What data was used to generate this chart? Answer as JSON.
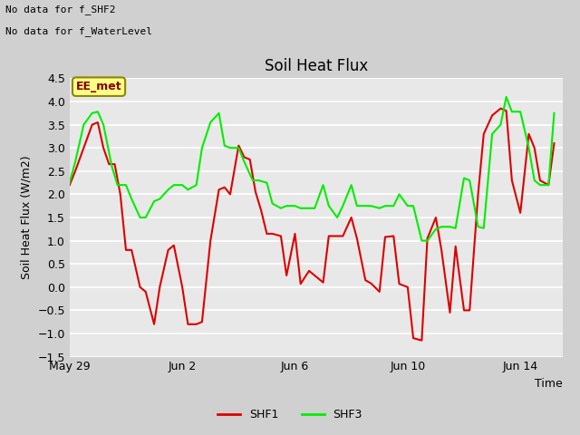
{
  "title": "Soil Heat Flux",
  "ylabel": "Soil Heat Flux (W/m2)",
  "xlabel": "Time",
  "top_note1": "No data for f_SHF2",
  "top_note2": "No data for f_WaterLevel",
  "legend_label": "EE_met",
  "ylim": [
    -1.5,
    4.5
  ],
  "yticks": [
    -1.5,
    -1.0,
    -0.5,
    0.0,
    0.5,
    1.0,
    1.5,
    2.0,
    2.5,
    3.0,
    3.5,
    4.0,
    4.5
  ],
  "bg_color": "#d0d0d0",
  "plot_bg_color": "#e8e8e8",
  "shf1_color": "#dd0000",
  "shf3_color": "#00ee00",
  "line_width": 1.5,
  "xlim": [
    0,
    17.5
  ],
  "xtick_labels": [
    "May 29",
    "Jun 2",
    "Jun 6",
    "Jun 10",
    "Jun 14"
  ],
  "xtick_positions": [
    0,
    4,
    8,
    12,
    16
  ],
  "shf1_x": [
    0.0,
    0.2,
    0.5,
    0.8,
    1.0,
    1.2,
    1.4,
    1.6,
    1.8,
    2.0,
    2.2,
    2.5,
    2.7,
    3.0,
    3.2,
    3.5,
    3.7,
    4.0,
    4.2,
    4.5,
    4.7,
    5.0,
    5.3,
    5.5,
    5.7,
    6.0,
    6.2,
    6.4,
    6.6,
    6.8,
    7.0,
    7.2,
    7.5,
    7.7,
    8.0,
    8.2,
    8.5,
    8.7,
    9.0,
    9.2,
    9.5,
    9.7,
    10.0,
    10.2,
    10.5,
    10.7,
    11.0,
    11.2,
    11.5,
    11.7,
    12.0,
    12.2,
    12.5,
    12.7,
    13.0,
    13.2,
    13.5,
    13.7,
    14.0,
    14.2,
    14.5,
    14.7,
    15.0,
    15.3,
    15.5,
    15.7,
    16.0,
    16.3,
    16.5,
    16.7,
    17.0,
    17.2
  ],
  "shf1_y": [
    2.2,
    2.5,
    3.0,
    3.5,
    3.55,
    3.0,
    2.65,
    2.65,
    2.0,
    0.8,
    0.8,
    0.0,
    -0.1,
    -0.8,
    0.0,
    0.8,
    0.9,
    0.0,
    -0.8,
    -0.8,
    -0.75,
    1.0,
    2.1,
    2.15,
    2.0,
    3.05,
    2.8,
    2.75,
    2.05,
    1.65,
    1.15,
    1.15,
    1.1,
    0.25,
    1.15,
    0.07,
    0.35,
    0.25,
    0.1,
    1.1,
    1.1,
    1.1,
    1.5,
    1.05,
    0.15,
    0.08,
    -0.1,
    1.08,
    1.1,
    0.07,
    0.0,
    -1.1,
    -1.15,
    1.05,
    1.5,
    0.8,
    -0.55,
    0.88,
    -0.5,
    -0.5,
    2.0,
    3.3,
    3.7,
    3.85,
    3.8,
    2.3,
    1.6,
    3.3,
    3.0,
    2.3,
    2.2,
    3.1
  ],
  "shf3_x": [
    0.0,
    0.2,
    0.5,
    0.8,
    1.0,
    1.2,
    1.5,
    1.7,
    2.0,
    2.2,
    2.5,
    2.7,
    3.0,
    3.2,
    3.5,
    3.7,
    4.0,
    4.2,
    4.5,
    4.7,
    5.0,
    5.3,
    5.5,
    5.7,
    6.0,
    6.2,
    6.5,
    6.7,
    7.0,
    7.2,
    7.5,
    7.7,
    8.0,
    8.2,
    8.5,
    8.7,
    9.0,
    9.2,
    9.5,
    9.7,
    10.0,
    10.2,
    10.5,
    10.7,
    11.0,
    11.2,
    11.5,
    11.7,
    12.0,
    12.2,
    12.5,
    12.7,
    13.0,
    13.2,
    13.5,
    13.7,
    14.0,
    14.2,
    14.5,
    14.7,
    15.0,
    15.3,
    15.5,
    15.7,
    16.0,
    16.3,
    16.5,
    16.7,
    17.0,
    17.2
  ],
  "shf3_y": [
    2.25,
    2.7,
    3.5,
    3.75,
    3.78,
    3.5,
    2.6,
    2.2,
    2.2,
    1.9,
    1.5,
    1.5,
    1.85,
    1.9,
    2.1,
    2.2,
    2.2,
    2.1,
    2.2,
    3.0,
    3.55,
    3.75,
    3.05,
    3.0,
    3.0,
    2.7,
    2.3,
    2.3,
    2.25,
    1.8,
    1.7,
    1.75,
    1.75,
    1.7,
    1.7,
    1.7,
    2.2,
    1.75,
    1.5,
    1.75,
    2.2,
    1.75,
    1.75,
    1.75,
    1.7,
    1.75,
    1.75,
    2.0,
    1.75,
    1.75,
    1.0,
    1.0,
    1.25,
    1.3,
    1.3,
    1.27,
    2.35,
    2.3,
    1.3,
    1.27,
    3.3,
    3.5,
    4.1,
    3.78,
    3.78,
    3.0,
    2.3,
    2.2,
    2.2,
    3.75
  ]
}
